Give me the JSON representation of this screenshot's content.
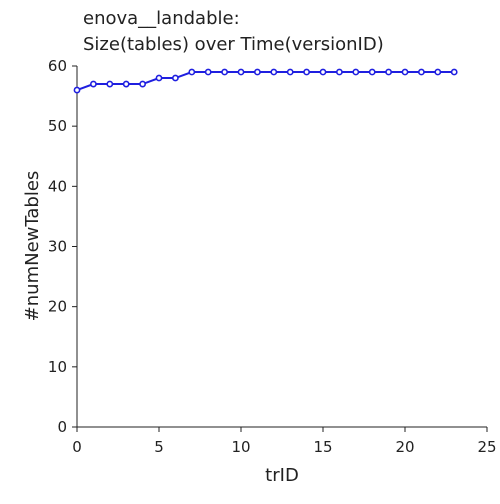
{
  "chart_data": {
    "type": "line",
    "title": [
      "enova__landable:",
      "Size(tables) over Time(versionID)"
    ],
    "xlabel": "trID",
    "ylabel": "#numNewTables",
    "xlim": [
      0,
      25
    ],
    "ylim": [
      0,
      60
    ],
    "xticks": [
      0,
      5,
      10,
      15,
      20,
      25
    ],
    "yticks": [
      0,
      10,
      20,
      30,
      40,
      50,
      60
    ],
    "grid": false,
    "colors": {
      "line": "#1f1fe0",
      "axis": "#222222"
    },
    "series": [
      {
        "x": [
          0,
          1,
          2,
          3,
          4,
          5,
          6,
          7,
          8,
          9,
          10,
          11,
          12,
          13,
          14,
          15,
          16,
          17,
          18,
          19,
          20,
          21,
          22,
          23
        ],
        "values": [
          56,
          57,
          57,
          57,
          57,
          58,
          58,
          59,
          59,
          59,
          59,
          59,
          59,
          59,
          59,
          59,
          59,
          59,
          59,
          59,
          59,
          59,
          59,
          59
        ]
      }
    ]
  }
}
